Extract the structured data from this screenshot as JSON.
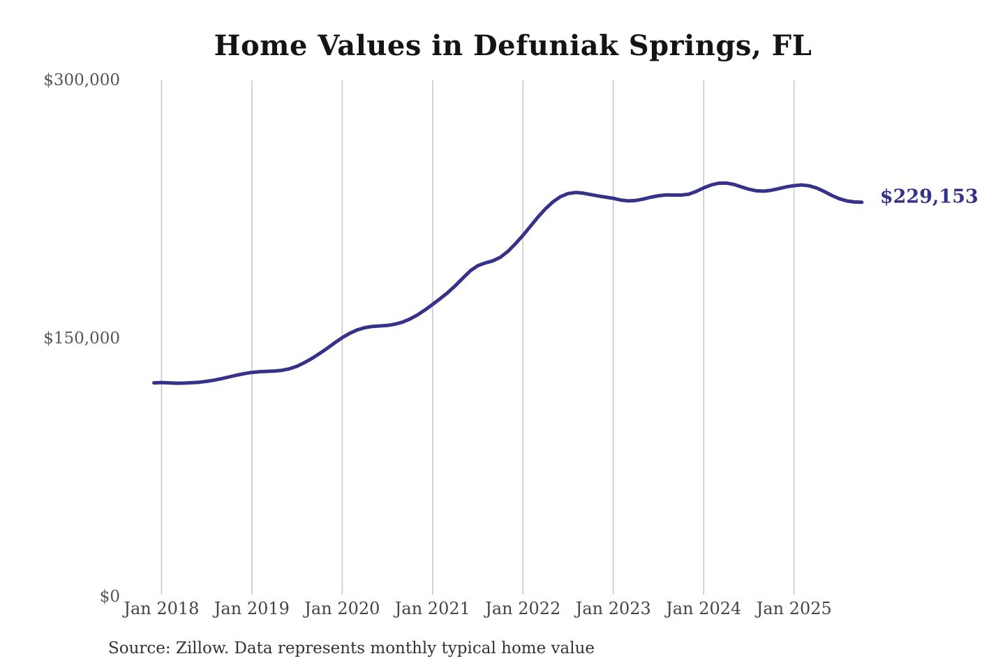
{
  "figure": {
    "title": "Home Values in Defuniak Springs, FL",
    "source_note": "Source: Zillow. Data represents monthly typical home value",
    "end_label": "$229,153"
  },
  "colors": {
    "line": "#363189",
    "end_label": "#363189",
    "gridline": "#c9c9c9",
    "title": "#141414",
    "y_tick": "#555555",
    "x_tick": "#454545",
    "source": "#333333",
    "background": "#ffffff"
  },
  "chart_data": {
    "type": "line",
    "title": "Home Values in Defuniak Springs, FL",
    "xlabel": "",
    "ylabel": "",
    "ylim": [
      0,
      300000
    ],
    "grid": "vertical-only",
    "legend": "none",
    "y_ticks": [
      {
        "label": "$0",
        "value": 0
      },
      {
        "label": "$150,000",
        "value": 150000
      },
      {
        "label": "$300,000",
        "value": 300000
      }
    ],
    "x_ticks": [
      {
        "label": "Jan 2018",
        "month_index": 1
      },
      {
        "label": "Jan 2019",
        "month_index": 13
      },
      {
        "label": "Jan 2020",
        "month_index": 25
      },
      {
        "label": "Jan 2021",
        "month_index": 37
      },
      {
        "label": "Jan 2022",
        "month_index": 49
      },
      {
        "label": "Jan 2023",
        "month_index": 61
      },
      {
        "label": "Jan 2024",
        "month_index": 73
      },
      {
        "label": "Jan 2025",
        "month_index": 85
      }
    ],
    "series": [
      {
        "name": "Typical home value",
        "months": [
          "2017-12",
          "2018-01",
          "2018-02",
          "2018-03",
          "2018-04",
          "2018-05",
          "2018-06",
          "2018-07",
          "2018-08",
          "2018-09",
          "2018-10",
          "2018-11",
          "2018-12",
          "2019-01",
          "2019-02",
          "2019-03",
          "2019-04",
          "2019-05",
          "2019-06",
          "2019-07",
          "2019-08",
          "2019-09",
          "2019-10",
          "2019-11",
          "2019-12",
          "2020-01",
          "2020-02",
          "2020-03",
          "2020-04",
          "2020-05",
          "2020-06",
          "2020-07",
          "2020-08",
          "2020-09",
          "2020-10",
          "2020-11",
          "2020-12",
          "2021-01",
          "2021-02",
          "2021-03",
          "2021-04",
          "2021-05",
          "2021-06",
          "2021-07",
          "2021-08",
          "2021-09",
          "2021-10",
          "2021-11",
          "2021-12",
          "2022-01",
          "2022-02",
          "2022-03",
          "2022-04",
          "2022-05",
          "2022-06",
          "2022-07",
          "2022-08",
          "2022-09",
          "2022-10",
          "2022-11",
          "2022-12",
          "2023-01",
          "2023-02",
          "2023-03",
          "2023-04",
          "2023-05",
          "2023-06",
          "2023-07",
          "2023-08",
          "2023-09",
          "2023-10",
          "2023-11",
          "2023-12",
          "2024-01",
          "2024-02",
          "2024-03",
          "2024-04",
          "2024-05",
          "2024-06",
          "2024-07",
          "2024-08",
          "2024-09",
          "2024-10",
          "2024-11",
          "2024-12",
          "2025-01",
          "2025-02",
          "2025-03",
          "2025-04",
          "2025-05",
          "2025-06",
          "2025-07",
          "2025-08",
          "2025-09",
          "2025-10"
        ],
        "values": [
          124200,
          124400,
          124200,
          124000,
          124100,
          124300,
          124600,
          125100,
          125800,
          126700,
          127700,
          128700,
          129600,
          130300,
          130700,
          130900,
          131100,
          131500,
          132400,
          133900,
          136000,
          138500,
          141300,
          144300,
          147500,
          150500,
          153000,
          155000,
          156300,
          157000,
          157300,
          157600,
          158300,
          159500,
          161300,
          163700,
          166600,
          169800,
          173100,
          176600,
          180600,
          185000,
          189300,
          192300,
          193900,
          195100,
          197200,
          200600,
          205000,
          209900,
          215200,
          220600,
          225400,
          229400,
          232400,
          234200,
          234800,
          234400,
          233600,
          232800,
          232100,
          231400,
          230400,
          229900,
          230200,
          231000,
          232100,
          232900,
          233400,
          233300,
          233300,
          233800,
          235400,
          237500,
          239200,
          240200,
          240300,
          239500,
          238100,
          236700,
          235800,
          235600,
          236100,
          237100,
          238100,
          238800,
          239200,
          238700,
          237400,
          235400,
          233100,
          231200,
          229900,
          229300,
          229153
        ]
      }
    ],
    "last_value": 229153,
    "last_value_label": "$229,153"
  }
}
